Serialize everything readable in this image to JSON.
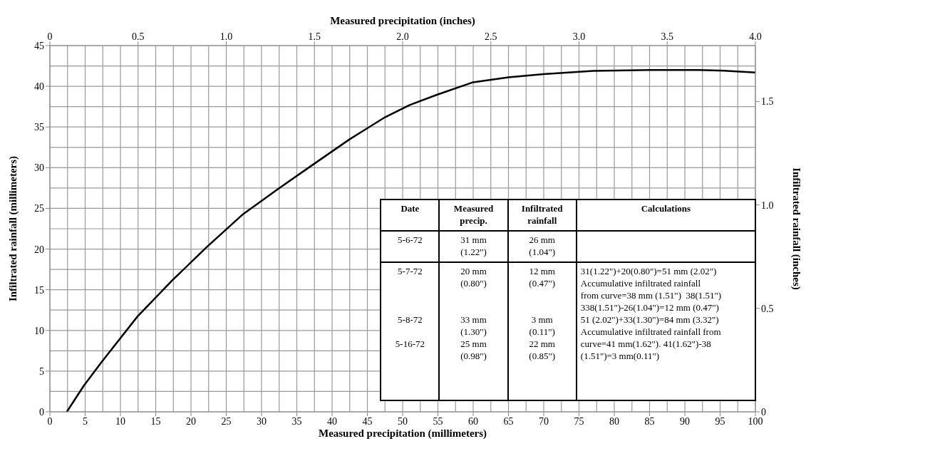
{
  "chart_data": {
    "type": "line",
    "xlabel": "Measured precipitation (millimeters)",
    "ylabel": "Infiltrated rainfall (millimeters)",
    "x2label": "Measured precipitation (inches)",
    "y2label": "Infiltrated rainfall (inches)",
    "xlim": [
      0,
      100
    ],
    "xticks": [
      0,
      5,
      10,
      15,
      20,
      25,
      30,
      35,
      40,
      45,
      50,
      55,
      60,
      65,
      70,
      75,
      80,
      85,
      90,
      95,
      100
    ],
    "ylim": [
      0,
      45
    ],
    "yticks": [
      0,
      5,
      10,
      15,
      20,
      25,
      30,
      35,
      40,
      45
    ],
    "x2lim": [
      0,
      4
    ],
    "x2ticks": [
      0,
      0.5,
      {
        "value": 1,
        "label": "1.0"
      },
      1.5,
      {
        "value": 2,
        "label": "2.0"
      },
      2.5,
      {
        "value": 3,
        "label": "3.0"
      },
      3.5,
      {
        "value": 4,
        "label": "4.0"
      }
    ],
    "y2lim": [
      0,
      1.77
    ],
    "y2ticks": [
      0,
      0.5,
      {
        "value": 1,
        "label": "1.0"
      },
      1.5
    ],
    "grid": true,
    "x": [
      2.4,
      4.8,
      7.4,
      12.4,
      17.4,
      22.3,
      27.4,
      32.2,
      37.5,
      42.5,
      47.5,
      51,
      55,
      60,
      65,
      70,
      77,
      85,
      92,
      96,
      100
    ],
    "series": [
      {
        "color": "#000000",
        "values": [
          0,
          3.2,
          6.2,
          11.7,
          16.2,
          20.3,
          24.3,
          27.3,
          30.5,
          33.5,
          36.2,
          37.7,
          39,
          40.5,
          41.1,
          41.5,
          41.9,
          42,
          42,
          41.9,
          41.7
        ]
      }
    ],
    "annotations": [
      "Date",
      "Measured precip.",
      "Infiltrated rainfall",
      "Calculations",
      "5-6-72",
      "31 mm\n(1.22\")",
      "26 mm\n(1.04\")",
      "5-7-72\n\n\n\n5-8-72\n\n5-16-72",
      "20 mm\n(0.80\")\n\n\n33 mm\n(1.30\")\n25 mm\n(0.98\")",
      "12 mm\n(0.47\")\n\n\n3 mm\n(0.11\")\n22 mm\n(0.85\")",
      "31(1.22\")+20(0.80\")=51 mm (2.02\")\nAccumulative infiltrated rainfall\nfrom curve=38 mm (1.51\")  38(1.51\")\n338(1.51\")-26(1.04\")=12 mm (0.47\")\n51 (2.02\")+33(1.30\")=84 mm (3.32\")\nAccumulative infiltrated rainfall from\ncurve=41 mm(1.62\"). 41(1.62\")-38\n(1.51\")=3 mm(0.11\")"
    ]
  }
}
